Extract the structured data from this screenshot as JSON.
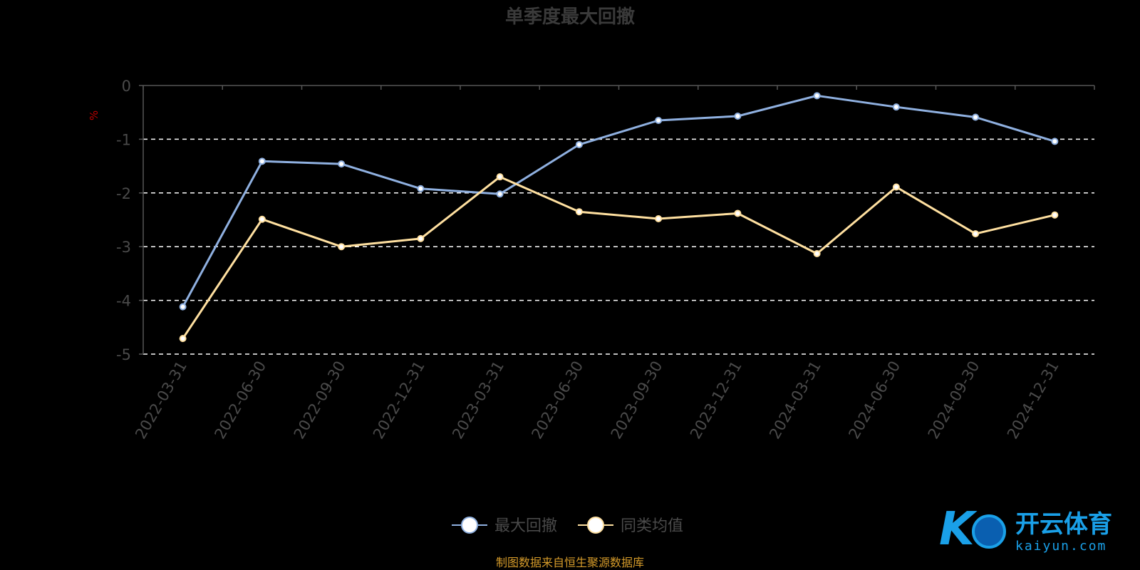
{
  "chart_data": {
    "type": "line",
    "title": "单季度最大回撤",
    "ylabel": "%",
    "ylim": [
      -5,
      0
    ],
    "yticks": [
      0,
      -1,
      -2,
      -3,
      -4,
      -5
    ],
    "grid": "dashed horizontal",
    "legend_position": "bottom-center",
    "categories": [
      "2022-03-31",
      "2022-06-30",
      "2022-09-30",
      "2022-12-31",
      "2023-03-31",
      "2023-06-30",
      "2023-09-30",
      "2023-12-31",
      "2024-03-31",
      "2024-06-30",
      "2024-09-30",
      "2024-12-31"
    ],
    "series": [
      {
        "name": "最大回撤",
        "color": "#8fb0e0",
        "values": [
          -4.12,
          -1.41,
          -1.46,
          -1.92,
          -2.02,
          -1.1,
          -0.65,
          -0.57,
          -0.19,
          -0.4,
          -0.59,
          -1.04
        ]
      },
      {
        "name": "同类均值",
        "color": "#ffe0a0",
        "values": [
          -4.71,
          -2.49,
          -3.0,
          -2.85,
          -1.7,
          -2.35,
          -2.48,
          -2.38,
          -3.13,
          -1.89,
          -2.76,
          -2.41
        ]
      }
    ]
  },
  "source_text": "制图数据来自恒生聚源数据库",
  "logo": {
    "name": "开云体育",
    "domain": "kaiyun.com"
  }
}
